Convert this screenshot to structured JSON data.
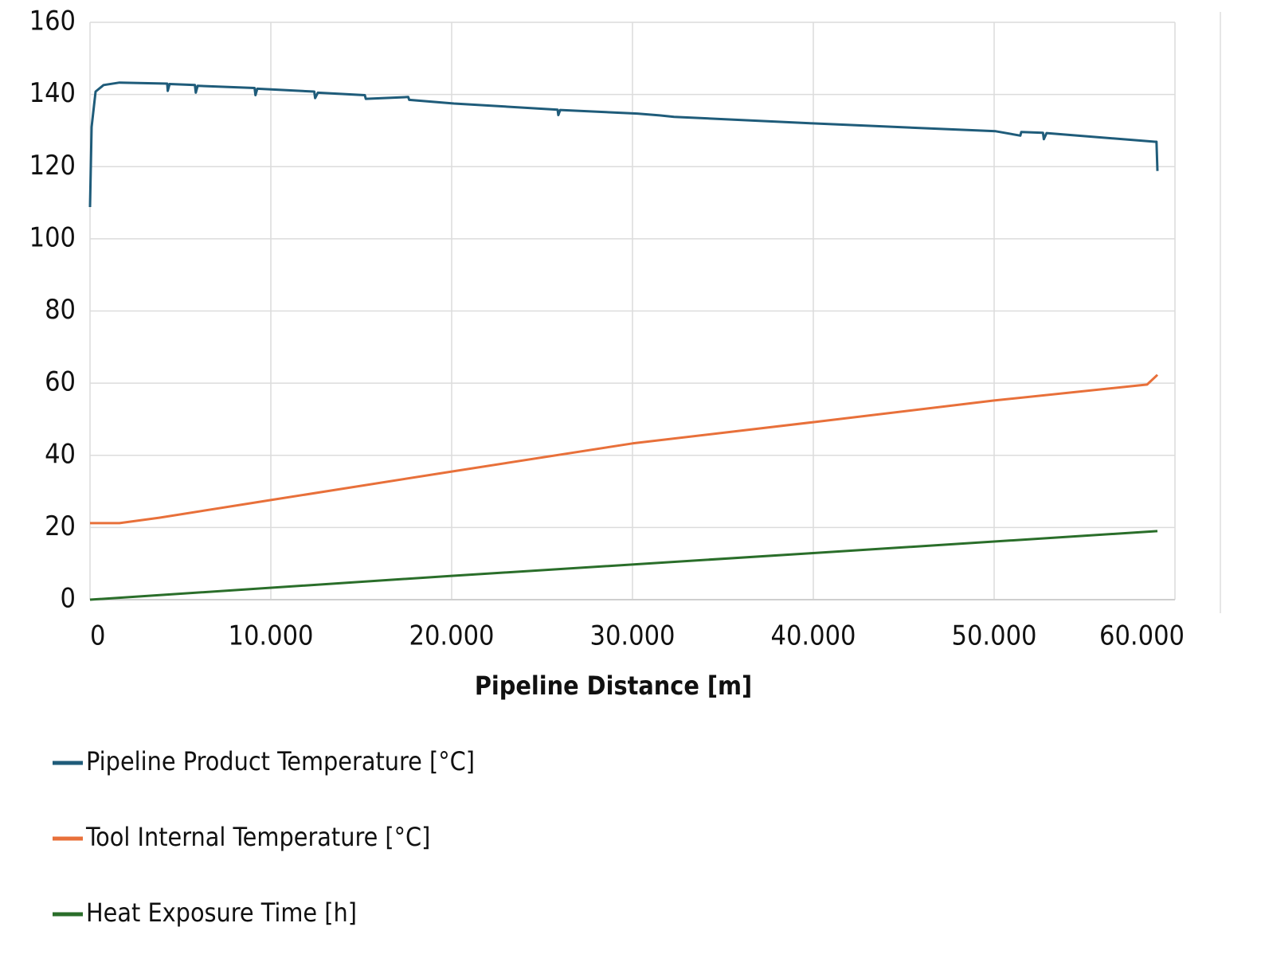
{
  "chart_data": {
    "type": "line",
    "xlabel": "Pipeline Distance [m]",
    "xlim": [
      0,
      60000
    ],
    "xticks": [
      0,
      {
        "value": 10000,
        "label": "10.000"
      },
      {
        "value": 20000,
        "label": "20.000"
      },
      {
        "value": 30000,
        "label": "30.000"
      },
      {
        "value": 40000,
        "label": "40.000"
      },
      {
        "value": 50000,
        "label": "50.000"
      },
      {
        "value": 60000,
        "label": "60.000"
      }
    ],
    "ylim": [
      0,
      160
    ],
    "yticks": [
      0,
      20,
      40,
      60,
      80,
      100,
      120,
      140,
      160
    ],
    "grid": true,
    "legend": "bottom",
    "series": [
      {
        "name": "Pipeline Product Temperature [°C]",
        "color": "#1f5c7a",
        "x": [
          0,
          90,
          310,
          750,
          1630,
          4270,
          4300,
          4400,
          5800,
          5850,
          5950,
          9100,
          9150,
          9250,
          12400,
          12450,
          12600,
          15200,
          15250,
          17600,
          17650,
          20130,
          25860,
          25900,
          26000,
          30260,
          31500,
          32300,
          39960,
          50090,
          51450,
          51500,
          52700,
          52750,
          52900,
          58900,
          58980,
          59030
        ],
        "values": [
          108.8,
          131,
          140.8,
          142.6,
          143.3,
          143,
          141,
          142.9,
          142.6,
          140.5,
          142.4,
          141.8,
          139.8,
          141.6,
          140.8,
          139,
          140.5,
          139.8,
          138.8,
          139.3,
          138.5,
          137.5,
          135.8,
          134.3,
          135.7,
          134.7,
          134.2,
          133.8,
          132,
          129.8,
          128.6,
          129.6,
          129.4,
          127.6,
          129.3,
          126.9,
          126.9,
          118.8
        ]
      },
      {
        "name": "Tool Internal Temperature [°C]",
        "color": "#e8703a",
        "x": [
          0,
          1630,
          3830,
          10000,
          20000,
          30000,
          40000,
          50000,
          58460,
          59030
        ],
        "values": [
          21.2,
          21.2,
          22.7,
          27.6,
          35.5,
          43.3,
          49.2,
          55.2,
          59.6,
          62.3
        ]
      },
      {
        "name": "Heat Exposure Time [h]",
        "color": "#2a6e2a",
        "x": [
          0,
          20000,
          40000,
          59030
        ],
        "values": [
          0,
          6.6,
          12.9,
          19.0
        ]
      }
    ]
  }
}
